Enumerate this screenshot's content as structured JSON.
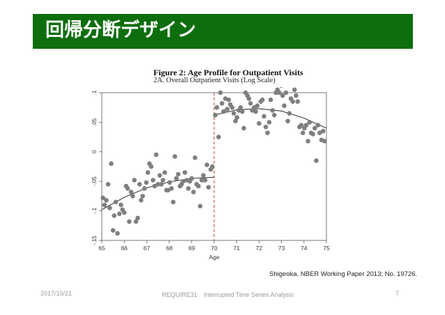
{
  "slide": {
    "title": "回帰分断デザイン",
    "citation": "Shigeoka. NBER Working Paper 2013; No. 19726.",
    "footer": {
      "date": "2017/10/21",
      "center": "REQUIRE31　Interrupted Time Series Analysis",
      "page": "7"
    },
    "colors": {
      "title_bar": "#0d6e0d",
      "title_text": "#ffffff"
    }
  },
  "chart_data": {
    "type": "scatter",
    "title": "Figure 2: Age Profile for Outpatient Visits",
    "subtitle": "2A. Overall Outpatient Visits (Log Scale)",
    "xlabel": "Age",
    "ylabel": "",
    "xlim": [
      65,
      75
    ],
    "ylim": [
      -0.15,
      0.1
    ],
    "x_ticks": [
      "65",
      "66",
      "67",
      "68",
      "69",
      "70",
      "71",
      "72",
      "73",
      "74",
      "75"
    ],
    "y_ticks": [
      "-.15",
      "-.1",
      "-.05",
      "0",
      ".05",
      ".1"
    ],
    "cutoff": 70,
    "grid": false,
    "colors": {
      "points": "#7f7f7f",
      "fit": "#3a3a3a",
      "cutoff": "#c0392b"
    },
    "fit_left": {
      "x": [
        65,
        66,
        67,
        68,
        69,
        70
      ],
      "y": [
        -0.098,
        -0.077,
        -0.061,
        -0.051,
        -0.045,
        -0.043
      ]
    },
    "fit_right": {
      "x": [
        70,
        71,
        72,
        73,
        74,
        75
      ],
      "y": [
        0.062,
        0.071,
        0.073,
        0.069,
        0.057,
        0.04
      ]
    },
    "points": {
      "x": [
        65.05,
        65.12,
        65.2,
        65.28,
        65.35,
        65.42,
        65.5,
        65.55,
        65.62,
        65.7,
        65.78,
        65.85,
        65.92,
        66.0,
        66.08,
        66.15,
        66.22,
        66.3,
        66.38,
        66.45,
        66.52,
        66.6,
        66.68,
        66.75,
        66.82,
        66.9,
        66.98,
        67.05,
        67.12,
        67.2,
        67.28,
        67.35,
        67.42,
        67.5,
        67.58,
        67.65,
        67.72,
        67.8,
        67.88,
        67.95,
        68.02,
        68.1,
        68.18,
        68.25,
        68.32,
        68.4,
        68.48,
        68.55,
        68.62,
        68.7,
        68.78,
        68.85,
        68.92,
        69.0,
        69.08,
        69.15,
        69.22,
        69.3,
        69.38,
        69.45,
        69.52,
        69.6,
        69.68,
        69.75,
        69.85,
        69.92,
        70.05,
        70.12,
        70.2,
        70.28,
        70.35,
        70.42,
        70.5,
        70.58,
        70.65,
        70.72,
        70.8,
        70.88,
        70.95,
        71.02,
        71.1,
        71.18,
        71.25,
        71.32,
        71.4,
        71.48,
        71.55,
        71.62,
        71.7,
        71.78,
        71.85,
        71.92,
        72.0,
        72.08,
        72.15,
        72.22,
        72.3,
        72.38,
        72.45,
        72.52,
        72.6,
        72.68,
        72.75,
        72.82,
        72.9,
        72.98,
        73.05,
        73.12,
        73.2,
        73.28,
        73.35,
        73.42,
        73.5,
        73.58,
        73.65,
        73.72,
        73.8,
        73.88,
        73.95,
        74.02,
        74.1,
        74.18,
        74.25,
        74.32,
        74.4,
        74.48,
        74.55,
        74.62,
        74.7,
        74.78,
        74.85,
        74.92
      ],
      "y": [
        -0.078,
        -0.09,
        -0.082,
        -0.055,
        -0.095,
        -0.02,
        -0.133,
        -0.108,
        -0.085,
        -0.138,
        -0.105,
        -0.09,
        -0.098,
        -0.103,
        -0.058,
        -0.062,
        -0.118,
        -0.068,
        -0.075,
        -0.048,
        -0.118,
        -0.112,
        -0.055,
        -0.082,
        -0.075,
        -0.062,
        -0.052,
        -0.035,
        -0.02,
        -0.025,
        -0.048,
        -0.058,
        -0.005,
        -0.055,
        -0.04,
        -0.055,
        -0.048,
        -0.035,
        -0.065,
        -0.065,
        -0.052,
        -0.062,
        -0.085,
        -0.008,
        -0.045,
        -0.038,
        -0.058,
        -0.055,
        -0.05,
        -0.035,
        -0.048,
        -0.062,
        -0.05,
        -0.045,
        -0.068,
        -0.01,
        -0.055,
        -0.058,
        -0.092,
        -0.048,
        -0.04,
        -0.048,
        -0.022,
        -0.06,
        -0.03,
        -0.025,
        0.062,
        0.075,
        0.025,
        0.1,
        0.082,
        0.068,
        0.09,
        0.072,
        0.088,
        0.08,
        0.075,
        0.065,
        0.052,
        0.058,
        0.07,
        0.075,
        0.068,
        0.04,
        0.1,
        0.095,
        0.09,
        0.082,
        0.07,
        0.075,
        0.068,
        0.078,
        0.048,
        0.085,
        0.088,
        0.06,
        0.042,
        0.032,
        0.05,
        0.088,
        0.07,
        0.062,
        0.1,
        0.105,
        0.1,
        0.112,
        0.095,
        0.078,
        0.1,
        0.052,
        0.065,
        0.09,
        0.085,
        0.105,
        0.095,
        0.085,
        0.042,
        0.045,
        0.032,
        0.04,
        0.045,
        0.018,
        0.05,
        0.032,
        0.03,
        0.04,
        -0.015,
        0.045,
        0.032,
        0.02,
        0.035,
        0.018
      ]
    }
  }
}
